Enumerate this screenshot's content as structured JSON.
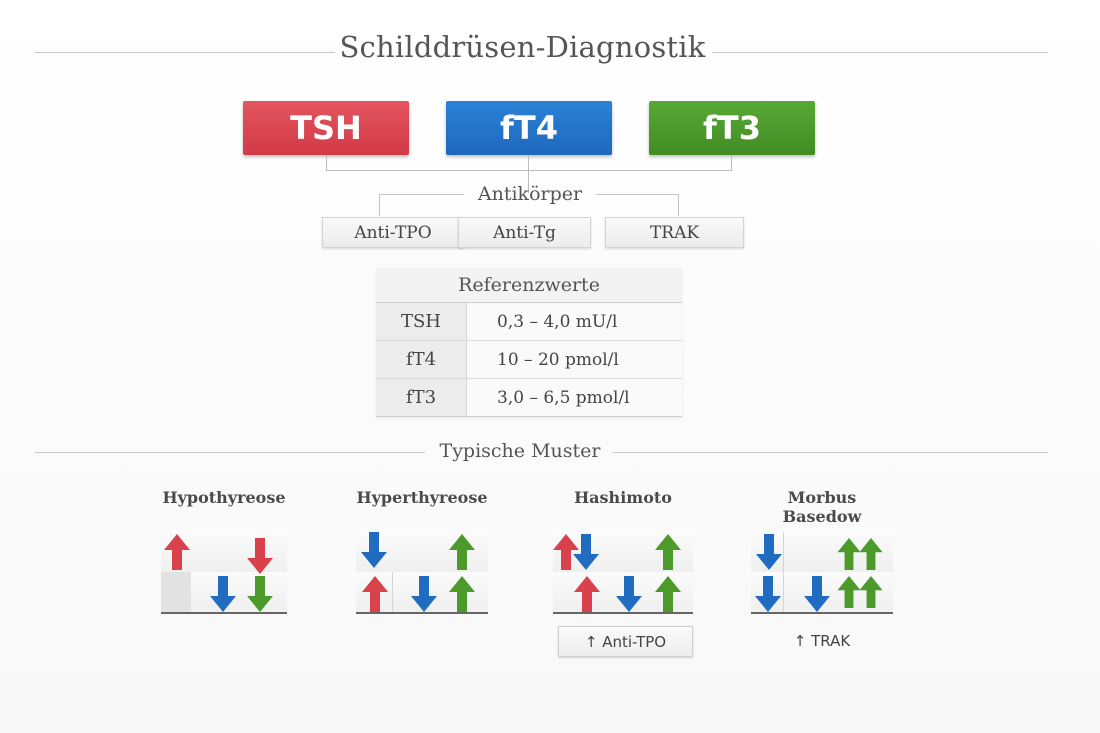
{
  "title": "Schilddrüsen-Diagnostik",
  "hormones": [
    {
      "label": "TSH",
      "color": "#dc3c4a"
    },
    {
      "label": "fT4",
      "color": "#1f6fc6"
    },
    {
      "label": "fT3",
      "color": "#4c9a2a"
    }
  ],
  "antibodies": {
    "heading": "Antikörper",
    "items": [
      "Anti-TPO",
      "Anti-Tg",
      "TRAK"
    ]
  },
  "reference": {
    "title": "Referenzwerte",
    "rows": [
      {
        "name": "TSH",
        "value": "0,3 – 4,0 mU/l"
      },
      {
        "name": "fT4",
        "value": "10 – 20 pmol/l"
      },
      {
        "name": "fT3",
        "value": "3,0 – 6,5 pmol/l"
      }
    ]
  },
  "patterns": {
    "heading": "Typische Muster",
    "items": [
      {
        "title": "Hypothyreose",
        "note": ""
      },
      {
        "title": "Hyperthyreose",
        "note": ""
      },
      {
        "title": "Hashimoto",
        "note": "↑ Anti-TPO"
      },
      {
        "title": "Morbus Basedow",
        "note": "↑ TRAK"
      }
    ]
  },
  "arrow_colors": {
    "red": "#d9414b",
    "blue": "#1f6cc0",
    "green": "#4c9a2a"
  }
}
